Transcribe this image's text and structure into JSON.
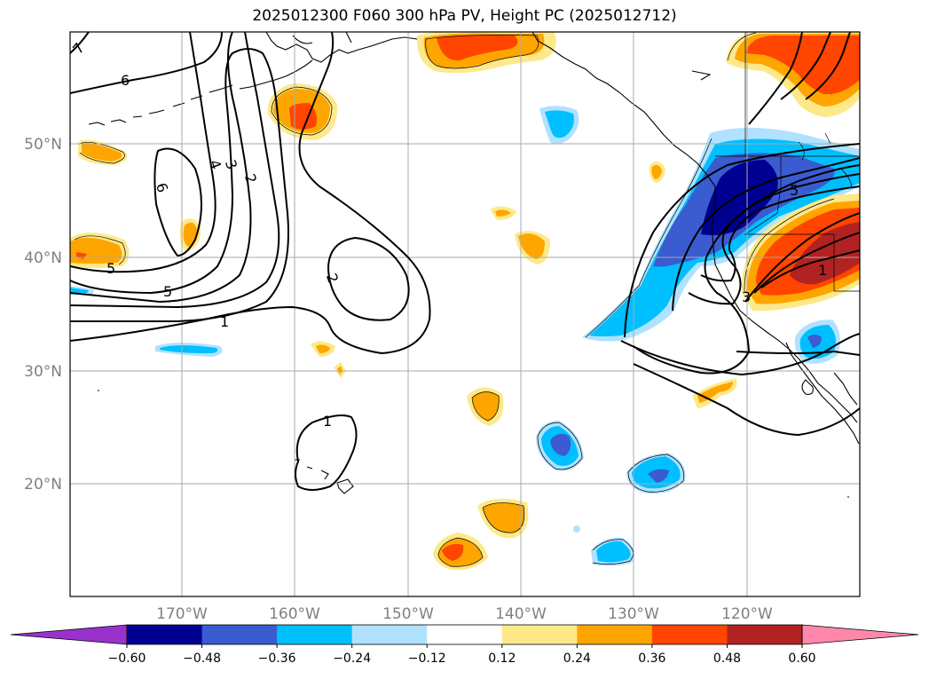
{
  "title": "2025012300 F060 300 hPa PV, Height PC (2025012712)",
  "map": {
    "lat_labels": [
      "50°N",
      "40°N",
      "30°N",
      "20°N"
    ],
    "lon_labels": [
      "170°W",
      "160°W",
      "150°W",
      "140°W",
      "130°W",
      "120°W"
    ],
    "contour_labels": [
      "7",
      "6",
      "6",
      "5",
      "4",
      "3",
      "2",
      "5",
      "1",
      "2",
      "1",
      "5",
      "1",
      "3"
    ]
  },
  "colorbar": {
    "ticks": [
      "−0.60",
      "−0.48",
      "−0.36",
      "−0.24",
      "−0.12",
      "0.12",
      "0.24",
      "0.36",
      "0.48",
      "0.60"
    ],
    "colors": {
      "under": "#9932cc",
      "levels": [
        "#000090",
        "#3b5bd0",
        "#00bfff",
        "#b0e2ff",
        "#ffffff",
        "#fde98a",
        "#ffa500",
        "#ff4500",
        "#b22222"
      ],
      "over": "#ff88aa"
    }
  },
  "colors": {
    "pos1": "#fde98a",
    "pos2": "#ffa500",
    "pos3": "#ff4500",
    "pos4": "#b22222",
    "neg1": "#b0e2ff",
    "neg2": "#00bfff",
    "neg3": "#3b5bd0",
    "neg4": "#000090",
    "grid": "#aaaaaa",
    "label_gray": "#808080"
  }
}
